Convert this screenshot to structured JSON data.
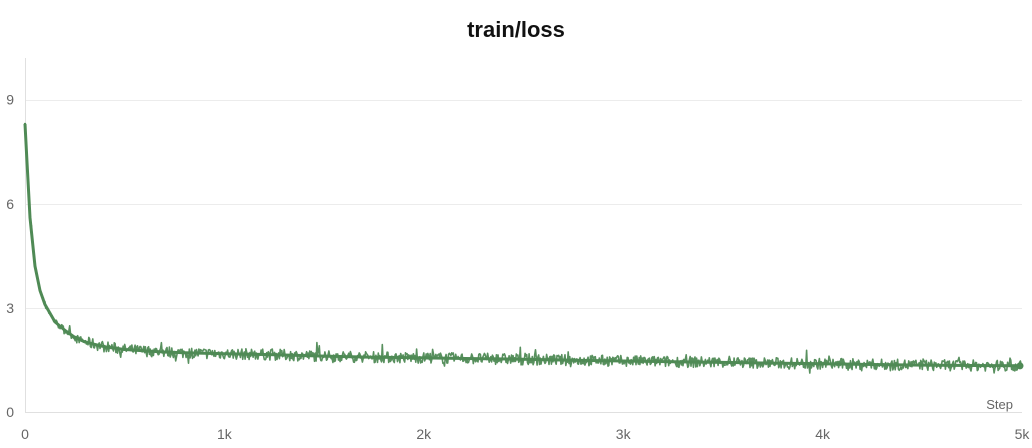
{
  "chart_data": {
    "type": "line",
    "title": "train/loss",
    "xlabel": "Step",
    "ylabel": "",
    "xlim": [
      0,
      5000
    ],
    "ylim": [
      0,
      10.2
    ],
    "x_ticks": [
      {
        "value": 0,
        "label": "0"
      },
      {
        "value": 1000,
        "label": "1k"
      },
      {
        "value": 2000,
        "label": "2k"
      },
      {
        "value": 3000,
        "label": "3k"
      },
      {
        "value": 4000,
        "label": "4k"
      },
      {
        "value": 5000,
        "label": "5k"
      }
    ],
    "y_ticks": [
      {
        "value": 0,
        "label": "0"
      },
      {
        "value": 3,
        "label": "3"
      },
      {
        "value": 6,
        "label": "6"
      },
      {
        "value": 9,
        "label": "9"
      }
    ],
    "grid": true,
    "series": [
      {
        "color": "#4f8a55",
        "x": [
          0,
          10,
          25,
          50,
          75,
          100,
          150,
          200,
          250,
          300,
          400,
          500,
          600,
          700,
          800,
          900,
          1000,
          1250,
          1500,
          1750,
          2000,
          2250,
          2500,
          2750,
          3000,
          3250,
          3500,
          3750,
          4000,
          4250,
          4500,
          4750,
          5000
        ],
        "y": [
          8.3,
          7.2,
          5.6,
          4.2,
          3.5,
          3.1,
          2.6,
          2.35,
          2.15,
          2.02,
          1.88,
          1.8,
          1.76,
          1.73,
          1.71,
          1.69,
          1.68,
          1.65,
          1.61,
          1.58,
          1.56,
          1.54,
          1.52,
          1.49,
          1.47,
          1.45,
          1.43,
          1.41,
          1.39,
          1.37,
          1.35,
          1.34,
          1.33
        ]
      }
    ]
  }
}
